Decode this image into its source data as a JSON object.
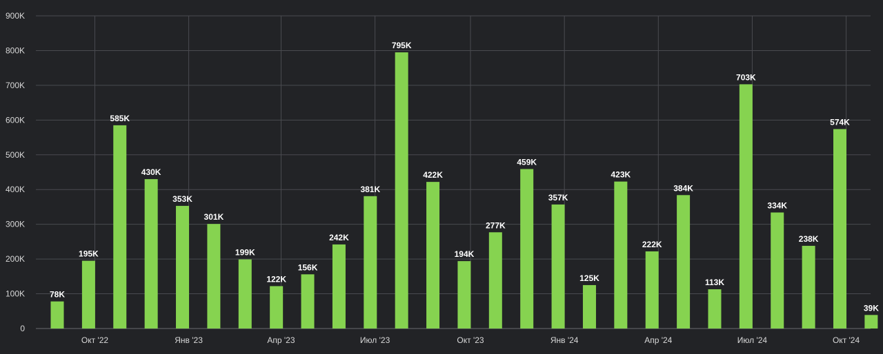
{
  "colors": {
    "background": "#222326",
    "bar": "#86d350",
    "grid": "#4a4b50",
    "text": "#d8d8d8",
    "label": "#ffffff"
  },
  "chart_data": {
    "type": "bar",
    "grid": true,
    "legend": "none",
    "ylim": [
      0,
      900000
    ],
    "yticks": [
      {
        "value": 0,
        "label": "0"
      },
      {
        "value": 100000,
        "label": "100K"
      },
      {
        "value": 200000,
        "label": "200K"
      },
      {
        "value": 300000,
        "label": "300K"
      },
      {
        "value": 400000,
        "label": "400K"
      },
      {
        "value": 500000,
        "label": "500K"
      },
      {
        "value": 600000,
        "label": "600K"
      },
      {
        "value": 700000,
        "label": "700K"
      },
      {
        "value": 800000,
        "label": "800K"
      },
      {
        "value": 900000,
        "label": "900K"
      }
    ],
    "xticks": [
      {
        "index": 1.2,
        "label": "Окт '22"
      },
      {
        "index": 4.2,
        "label": "Янв '23"
      },
      {
        "index": 7.15,
        "label": "Апр '23"
      },
      {
        "index": 10.15,
        "label": "Июл '23"
      },
      {
        "index": 13.2,
        "label": "Окт '23"
      },
      {
        "index": 16.2,
        "label": "Янв '24"
      },
      {
        "index": 19.2,
        "label": "Апр '24"
      },
      {
        "index": 22.2,
        "label": "Июл '24"
      },
      {
        "index": 25.2,
        "label": "Окт '24"
      }
    ],
    "values": [
      78000,
      195000,
      585000,
      430000,
      353000,
      301000,
      199000,
      122000,
      156000,
      242000,
      381000,
      795000,
      422000,
      194000,
      277000,
      459000,
      357000,
      125000,
      423000,
      222000,
      384000,
      113000,
      703000,
      334000,
      238000,
      574000,
      39000
    ],
    "data_labels": [
      "78K",
      "195K",
      "585K",
      "430K",
      "353K",
      "301K",
      "199K",
      "122K",
      "156K",
      "242K",
      "381K",
      "795K",
      "422K",
      "194K",
      "277K",
      "459K",
      "357K",
      "125K",
      "423K",
      "222K",
      "384K",
      "113K",
      "703K",
      "334K",
      "238K",
      "574K",
      "39K"
    ]
  }
}
